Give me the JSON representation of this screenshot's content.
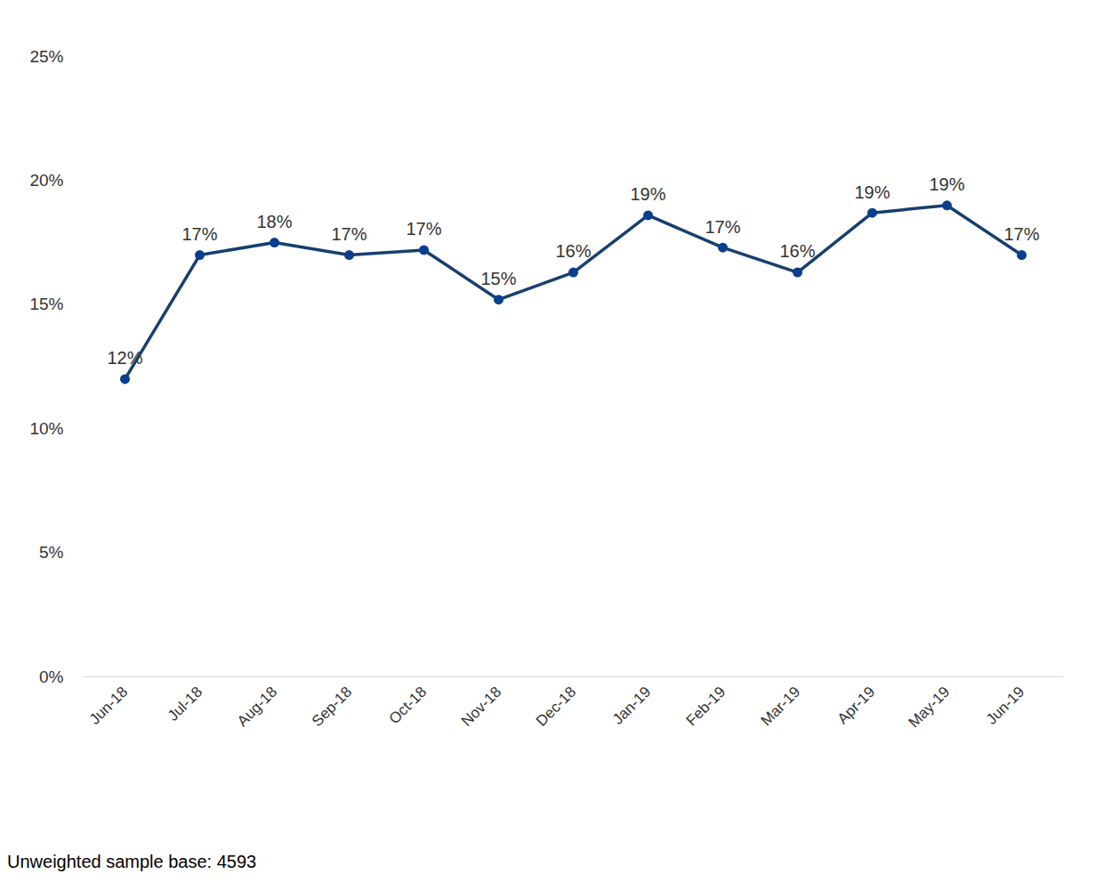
{
  "chart_data": {
    "type": "line",
    "caption": "Unweighted sample base: 4593",
    "categories": [
      "Jun-18",
      "Jul-18",
      "Aug-18",
      "Sep-18",
      "Oct-18",
      "Nov-18",
      "Dec-18",
      "Jan-19",
      "Feb-19",
      "Mar-19",
      "Apr-19",
      "May-19",
      "Jun-19"
    ],
    "values": [
      12.0,
      17.0,
      17.5,
      17.0,
      17.2,
      15.2,
      16.3,
      18.6,
      17.3,
      16.3,
      18.7,
      19.0,
      17.0
    ],
    "value_labels": [
      "12%",
      "17%",
      "18%",
      "17%",
      "17%",
      "15%",
      "16%",
      "19%",
      "17%",
      "16%",
      "19%",
      "19%",
      "17%"
    ],
    "color": "#173f6e",
    "marker": "circle",
    "data_labels": true,
    "grid": false,
    "ylim": [
      0,
      25
    ],
    "yticks": [
      {
        "value": 0,
        "label": "0%"
      },
      {
        "value": 5,
        "label": "5%"
      },
      {
        "value": 10,
        "label": "10%"
      },
      {
        "value": 15,
        "label": "15%"
      },
      {
        "value": 20,
        "label": "20%"
      },
      {
        "value": 25,
        "label": "25%"
      }
    ]
  }
}
